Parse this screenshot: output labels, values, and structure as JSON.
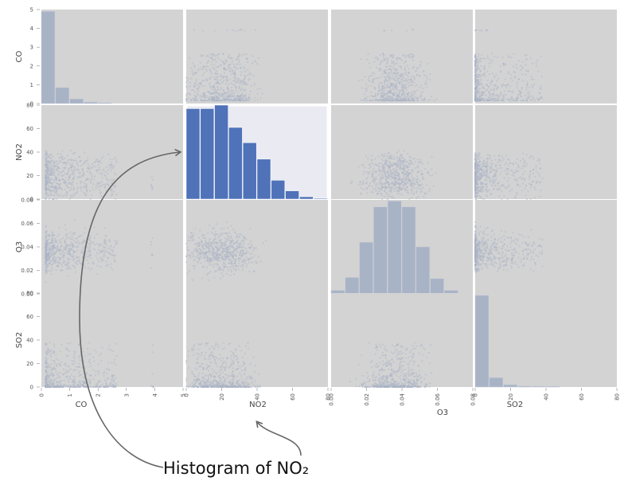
{
  "chart_data": {
    "type": "scatter_matrix",
    "variables": [
      "CO",
      "NO2",
      "O3",
      "SO2"
    ],
    "colors": {
      "panel_bg": "#d3d3d3",
      "highlight_bg": "#eaeaf2",
      "hist": "#a9b3c6",
      "hist_highlight": "#4f72b8",
      "points": "#aab3c5"
    },
    "ranges": {
      "CO": {
        "lim": [
          0,
          5
        ],
        "ticks": [
          0,
          1,
          2,
          3,
          4,
          5
        ]
      },
      "NO2": {
        "lim": [
          0,
          80
        ],
        "ticks": [
          0,
          20,
          40,
          60,
          80
        ]
      },
      "O3": {
        "lim": [
          0,
          0.08
        ],
        "ticks": [
          "0.00",
          "0.02",
          "0.04",
          "0.06",
          "0.08"
        ]
      },
      "SO2": {
        "lim": [
          0,
          80
        ],
        "ticks": [
          0,
          20,
          40,
          60,
          80
        ]
      }
    },
    "histograms": {
      "CO": {
        "bins": [
          0,
          0.5,
          1,
          1.5,
          2,
          2.5,
          3,
          3.5,
          4,
          4.5,
          5
        ],
        "counts": [
          4.9,
          0.85,
          0.25,
          0.08,
          0.02,
          0,
          0,
          0,
          0,
          0
        ]
      },
      "NO2": {
        "bins": [
          0,
          8,
          16,
          24,
          32,
          40,
          48,
          56,
          64,
          72,
          80
        ],
        "counts": [
          77,
          77,
          80,
          61,
          48,
          34,
          16,
          7,
          2,
          0.3
        ]
      },
      "O3": {
        "bins": [
          0,
          0.008,
          0.016,
          0.024,
          0.032,
          0.04,
          0.048,
          0.056,
          0.064,
          0.072,
          0.08
        ],
        "counts": [
          0.003,
          0.014,
          0.044,
          0.074,
          0.079,
          0.074,
          0.04,
          0.013,
          0.003,
          0
        ]
      },
      "SO2": {
        "bins": [
          0,
          8,
          16,
          24,
          32,
          40,
          48,
          56,
          64,
          72,
          80
        ],
        "counts": [
          78,
          8,
          2,
          0.8,
          0.3,
          0.2,
          0,
          0,
          0,
          0
        ]
      }
    },
    "highlight": "NO2",
    "annotation": {
      "text": "Histogram of NO₂"
    },
    "grid": false
  }
}
